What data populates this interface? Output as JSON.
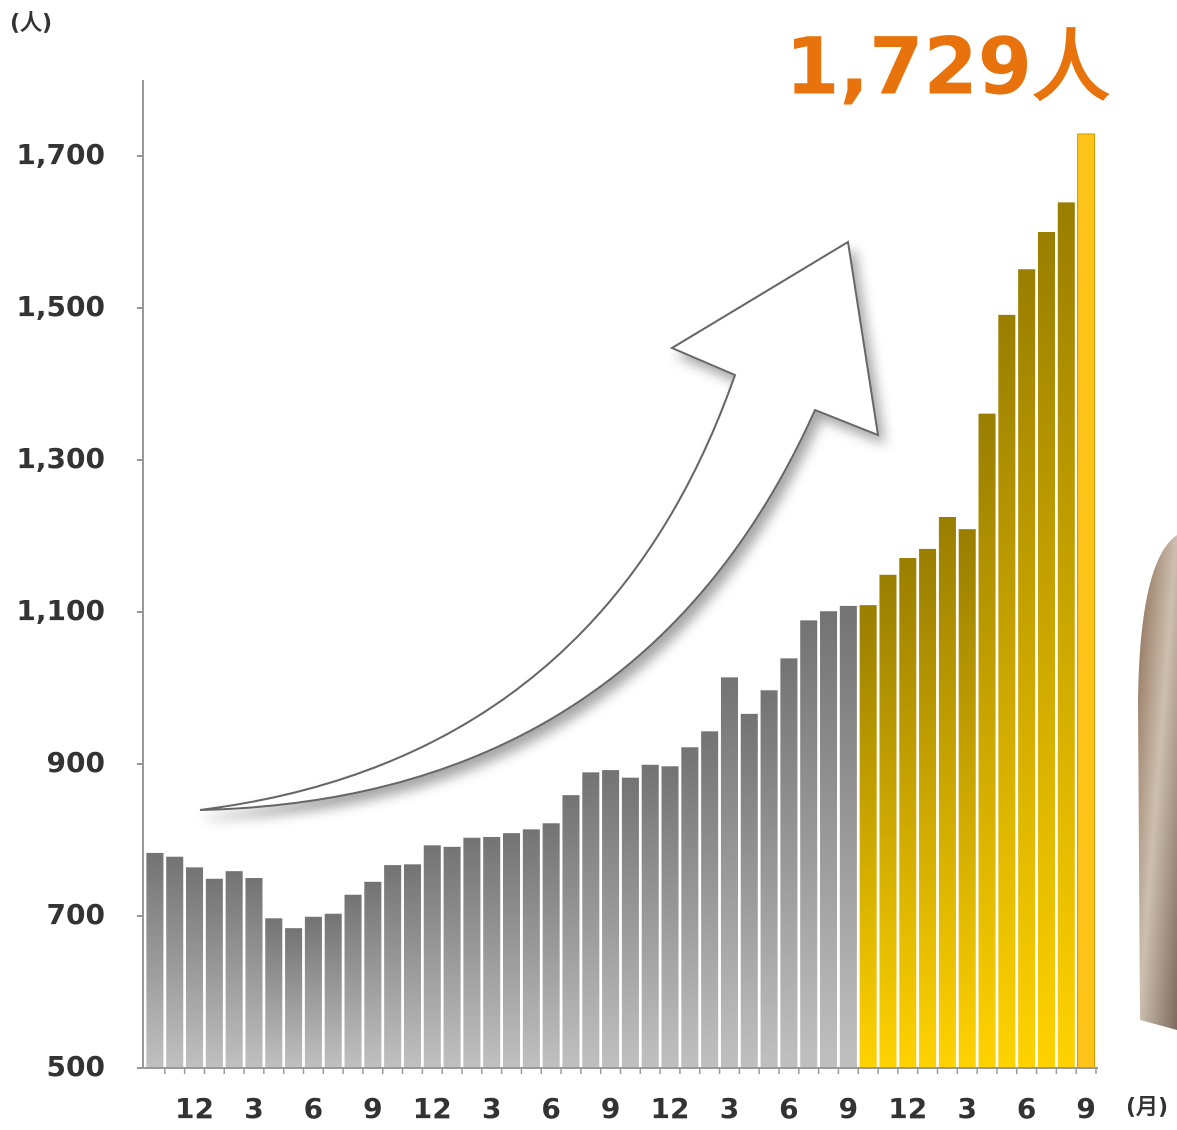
{
  "chart_data": {
    "type": "bar",
    "y_unit_label": "(人)",
    "x_unit_label": "(月)",
    "categories": [
      null,
      null,
      "12",
      null,
      null,
      "3",
      null,
      null,
      "6",
      null,
      null,
      "9",
      null,
      null,
      "12",
      null,
      null,
      "3",
      null,
      null,
      "6",
      null,
      null,
      "9",
      null,
      null,
      "12",
      null,
      null,
      "3",
      null,
      null,
      "6",
      null,
      null,
      "9",
      null,
      null,
      "12",
      null,
      null,
      "3",
      null,
      null,
      "6",
      null,
      null,
      "9"
    ],
    "values": [
      783,
      778,
      764,
      749,
      759,
      750,
      697,
      684,
      699,
      703,
      728,
      745,
      767,
      768,
      793,
      791,
      803,
      804,
      809,
      814,
      822,
      859,
      889,
      892,
      882,
      899,
      897,
      922,
      943,
      1014,
      966,
      997,
      1039,
      1089,
      1101,
      1108,
      1109,
      1149,
      1171,
      1183,
      1225,
      1209,
      1361,
      1491,
      1551,
      1600,
      1639,
      1729
    ],
    "value_labels": [
      null,
      null,
      null,
      null,
      null,
      null,
      null,
      null,
      null,
      null,
      null,
      null,
      null,
      null,
      null,
      null,
      null,
      null,
      null,
      null,
      null,
      null,
      null,
      null,
      null,
      null,
      null,
      null,
      null,
      null,
      null,
      null,
      null,
      null,
      null,
      null,
      null,
      null,
      null,
      null,
      null,
      null,
      null,
      null,
      null,
      null,
      null,
      "1,729人"
    ],
    "bar_colors": [
      "#c0c0c0",
      "#c0c0c0",
      "#c0c0c0",
      "#c0c0c0",
      "#c0c0c0",
      "#c0c0c0",
      "#c0c0c0",
      "#c0c0c0",
      "#c0c0c0",
      "#c0c0c0",
      "#c0c0c0",
      "#c0c0c0",
      "#c0c0c0",
      "#c0c0c0",
      "#c0c0c0",
      "#c0c0c0",
      "#c0c0c0",
      "#c0c0c0",
      "#c0c0c0",
      "#c0c0c0",
      "#c0c0c0",
      "#c0c0c0",
      "#c0c0c0",
      "#c0c0c0",
      "#c0c0c0",
      "#c0c0c0",
      "#c0c0c0",
      "#c0c0c0",
      "#c0c0c0",
      "#c0c0c0",
      "#c0c0c0",
      "#c0c0c0",
      "#c0c0c0",
      "#c0c0c0",
      "#c0c0c0",
      "#c0c0c0",
      "#ffd200",
      "#ffd200",
      "#ffd200",
      "#ffd200",
      "#ffd200",
      "#ffd200",
      "#ffd200",
      "#ffd200",
      "#ffd200",
      "#ffd200",
      "#ffd200",
      "#ffc41a"
    ],
    "label_color": "#e8720c",
    "ylim": [
      500,
      1800
    ],
    "yticks": [
      500,
      700,
      900,
      {
        "value": 1100,
        "label": "1,100"
      },
      {
        "value": 1300,
        "label": "1,300"
      },
      {
        "value": 1500,
        "label": "1,500"
      },
      {
        "value": 1700,
        "label": "1,700"
      }
    ],
    "grid": false
  }
}
